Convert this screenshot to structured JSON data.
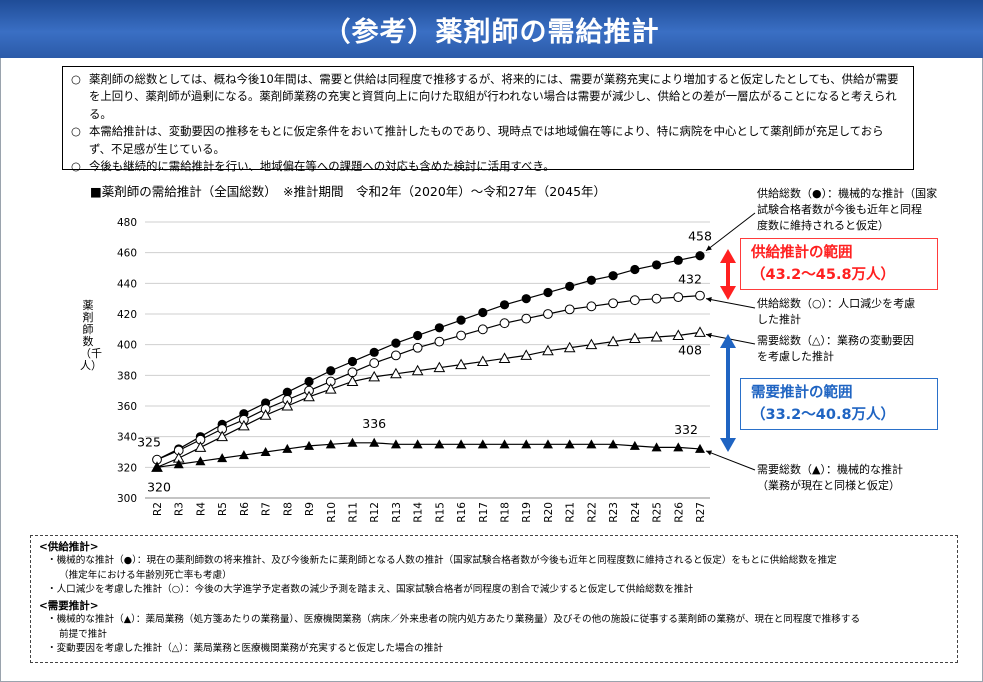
{
  "title": "（参考）薬剤師の需給推計",
  "notes": [
    "薬剤師の総数としては、概ね今後10年間は、需要と供給は同程度で推移するが、将来的には、需要が業務充実により増加すると仮定したとしても、供給が需要を上回り、薬剤師が過剰になる。薬剤師業務の充実と資質向上に向けた取組が行われない場合は需要が減少し、供給との差が一層広がることになると考えられる。",
    "本需給推計は、変動要因の推移をもとに仮定条件をおいて推計したものであり、現時点では地域偏在等により、特に病院を中心として薬剤師が充足しておらず、不足感が生じている。",
    "今後も継続的に需給推計を行い、地域偏在等への課題への対応も含めた検討に活用すべき。"
  ],
  "note_mark": "○",
  "chart_heading": "■薬剤師の需給推計（全国総数）　※推計期間　令和2年（2020年）～令和27年（2045年）",
  "ylabel": "薬剤師数（千人）",
  "annotations": {
    "supply_mech": [
      "供給総数（●）：機械的な推計（国家",
      "試験合格者数が今後も近年と同程",
      "度数に維持されると仮定）"
    ],
    "supply_pop": [
      "供給総数（○）：人口減少を考慮",
      "した推計"
    ],
    "demand_var": [
      "需要総数（△）：業務の変動要因",
      "を考慮した推計"
    ],
    "demand_mech": [
      "需要総数（▲）：機械的な推計",
      "（業務が現在と同様と仮定）"
    ]
  },
  "supply_range": {
    "title": "供給推計の範囲",
    "value": "（43.2～45.8万人）"
  },
  "demand_range": {
    "title": "需要推計の範囲",
    "value": "（33.2～40.8万人）"
  },
  "definitions": {
    "supply_head": "<供給推計>",
    "supply_items": [
      [
        "・機械的な推計（●）：現在の薬剤師数の将来推計、及び今後新たに薬剤師となる人数の推計（国家試験合格者数が今後も近年と同程度数に維持されると仮定）をもとに供給総数を推定",
        "（推定年における年齢別死亡率も考慮）"
      ],
      [
        "・人口減少を考慮した推計（○）：今後の大学進学予定者数の減少予測を踏まえ、国家試験合格者が同程度の割合で減少すると仮定して供給総数を推計"
      ]
    ],
    "demand_head": "<需要推計>",
    "demand_items": [
      [
        "・機械的な推計（▲）：薬局業務（処方箋あたりの業務量）、医療機関業務（病床／外来患者の院内処方あたり業務量）及びその他の施設に従事する薬剤師の業務が、現在と同程度で推移する",
        "前提で推計"
      ],
      [
        "・変動要因を考慮した推計（△）：薬局業務と医療機関業務が充実すると仮定した場合の推計"
      ]
    ]
  },
  "colors": {
    "title_bg": "#2b5aa8",
    "supply_red": "#ff2020",
    "demand_blue": "#1f64c2",
    "gridline": "#cfcfcf"
  },
  "chart_data": {
    "type": "line",
    "title": "薬剤師の需給推計（全国総数）",
    "xlabel": "",
    "ylabel": "薬剤師数（千人）",
    "ylim": [
      300,
      480
    ],
    "yticks": [
      300,
      320,
      340,
      360,
      380,
      400,
      420,
      440,
      460,
      480
    ],
    "grid": true,
    "categories": [
      "R2",
      "R3",
      "R4",
      "R5",
      "R6",
      "R7",
      "R8",
      "R9",
      "R10",
      "R11",
      "R12",
      "R13",
      "R14",
      "R15",
      "R16",
      "R17",
      "R18",
      "R19",
      "R20",
      "R21",
      "R22",
      "R23",
      "R24",
      "R25",
      "R26",
      "R27"
    ],
    "series": [
      {
        "name": "供給総数（●）機械的な推計",
        "marker": "filled-circle",
        "values": [
          325,
          332,
          340,
          348,
          355,
          362,
          369,
          376,
          383,
          389,
          395,
          401,
          406,
          411,
          416,
          421,
          426,
          430,
          434,
          438,
          442,
          445,
          449,
          452,
          455,
          458
        ]
      },
      {
        "name": "供給総数（○）人口減少を考慮した推計",
        "marker": "open-circle",
        "values": [
          325,
          331,
          338,
          345,
          351,
          358,
          364,
          370,
          376,
          382,
          388,
          393,
          398,
          402,
          406,
          410,
          414,
          417,
          420,
          423,
          425,
          427,
          429,
          430,
          431,
          432
        ]
      },
      {
        "name": "需要総数（△）業務の変動要因を考慮した推計",
        "marker": "open-triangle",
        "values": [
          320,
          326,
          333,
          340,
          347,
          354,
          360,
          366,
          371,
          376,
          379,
          381,
          383,
          385,
          387,
          389,
          391,
          393,
          396,
          398,
          400,
          402,
          404,
          405,
          406,
          408
        ]
      },
      {
        "name": "需要総数（▲）機械的な推計",
        "marker": "filled-triangle",
        "values": [
          320,
          322,
          324,
          326,
          328,
          330,
          332,
          334,
          335,
          336,
          336,
          335,
          335,
          335,
          335,
          335,
          335,
          335,
          335,
          335,
          335,
          335,
          334,
          333,
          333,
          332
        ]
      }
    ],
    "data_labels": [
      {
        "series": 0,
        "index": 0,
        "text": "325"
      },
      {
        "series": 3,
        "index": 0,
        "text": "320"
      },
      {
        "series": 3,
        "index": 10,
        "text": "336"
      },
      {
        "series": 3,
        "index": 25,
        "text": "332"
      },
      {
        "series": 0,
        "index": 25,
        "text": "458"
      },
      {
        "series": 1,
        "index": 25,
        "text": "432"
      },
      {
        "series": 2,
        "index": 25,
        "text": "408"
      }
    ]
  }
}
